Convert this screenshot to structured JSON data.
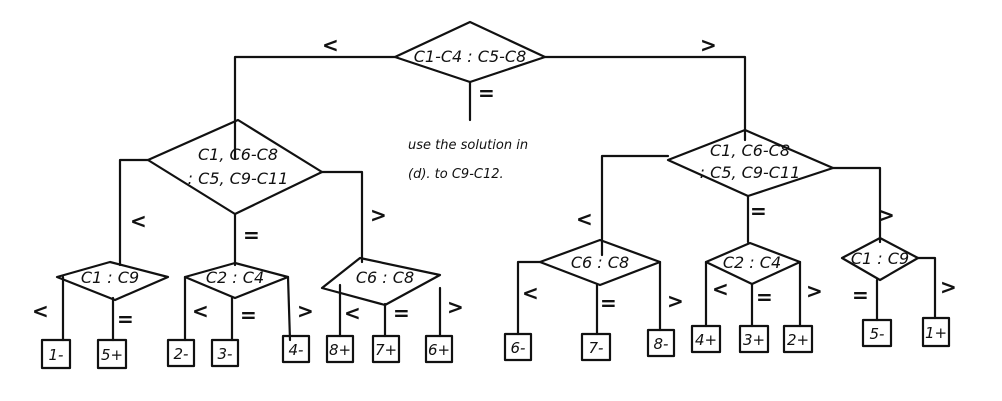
{
  "diagram": {
    "root": {
      "label": "C1-C4 : C5-C8",
      "branches": {
        "less": "<",
        "equal": "=",
        "greater": ">"
      },
      "equal_note_line1": "use the solution in",
      "equal_note_line2": "(d). to C9-C12."
    },
    "left": {
      "label_line1": "C1, C6-C8",
      "label_line2": ": C5, C9-C11",
      "branches": {
        "less": "<",
        "equal": "=",
        "greater": ">"
      },
      "children": [
        {
          "label": "C1 : C9",
          "less": "<",
          "equal": "=",
          "leaves": [
            "1-",
            "5+"
          ]
        },
        {
          "label": "C2 : C4",
          "less": "<",
          "equal": "=",
          "greater": ">",
          "leaves": [
            "2-",
            "3-",
            "4-"
          ]
        },
        {
          "label": "C6 : C8",
          "less": "<",
          "equal": "=",
          "greater": ">",
          "leaves": [
            "8+",
            "7+",
            "6+"
          ]
        }
      ]
    },
    "right": {
      "label_line1": "C1, C6-C8",
      "label_line2": ": C5, C9-C11",
      "branches": {
        "less": "<",
        "equal": "=",
        "greater": ">"
      },
      "children": [
        {
          "label": "C6 : C8",
          "less": "<",
          "equal": "=",
          "greater": ">",
          "leaves": [
            "6-",
            "7-",
            "8-"
          ]
        },
        {
          "label": "C2 : C4",
          "less": "<",
          "equal": "=",
          "greater": ">",
          "leaves": [
            "4+",
            "3+",
            "2+"
          ]
        },
        {
          "label": "C1 : C9",
          "equal": "=",
          "greater": ">",
          "leaves": [
            "5-",
            "1+"
          ]
        }
      ]
    }
  }
}
